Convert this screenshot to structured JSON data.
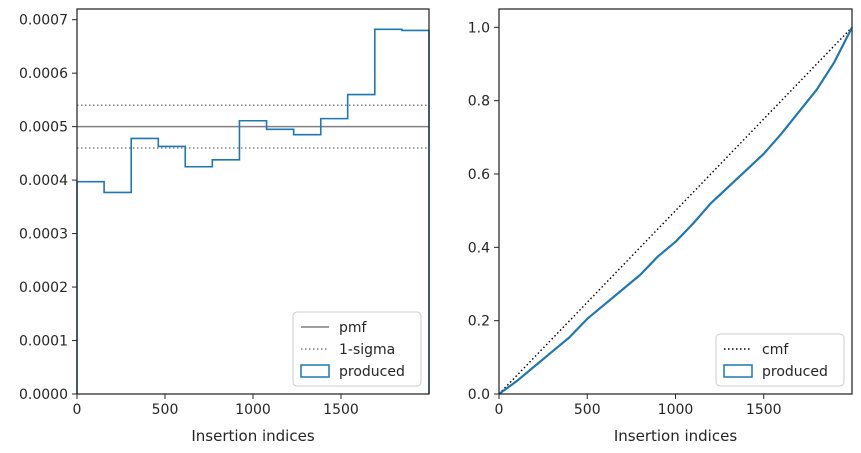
{
  "chart_data": [
    {
      "type": "histogram-step",
      "xlabel": "Insertion indices",
      "ylabel": "",
      "title": "",
      "xlim": [
        0,
        2000
      ],
      "ylim": [
        0,
        0.00072
      ],
      "xticks": [
        0,
        500,
        1000,
        1500
      ],
      "xtick_labels": [
        "0",
        "500",
        "1000",
        "1500"
      ],
      "yticks": [
        0,
        0.0001,
        0.0002,
        0.0003,
        0.0004,
        0.0005,
        0.0006,
        0.0007
      ],
      "ytick_labels": [
        "0.0000",
        "0.0001",
        "0.0002",
        "0.0003",
        "0.0004",
        "0.0005",
        "0.0006",
        "0.0007"
      ],
      "bin_edges": [
        0,
        154,
        308,
        462,
        615,
        769,
        923,
        1077,
        1231,
        1385,
        1538,
        1692,
        1846,
        2000
      ],
      "values": [
        0.000397,
        0.000377,
        0.000478,
        0.000463,
        0.000425,
        0.000438,
        0.000511,
        0.000495,
        0.000485,
        0.000515,
        0.00056,
        0.000682,
        0.00068
      ],
      "pmf": 0.0005,
      "sigma_band": [
        0.00046,
        0.00054
      ],
      "grid": false,
      "legend_position": "bottom-right",
      "legend": [
        {
          "label": "pmf",
          "style": "solid-line",
          "color": "#808080"
        },
        {
          "label": "1-sigma",
          "style": "dotted-line",
          "color": "#808080"
        },
        {
          "label": "produced",
          "style": "box",
          "color": "#1f77b4"
        }
      ]
    },
    {
      "type": "line",
      "xlabel": "Insertion indices",
      "ylabel": "",
      "title": "",
      "xlim": [
        0,
        2000
      ],
      "ylim": [
        0,
        1.05
      ],
      "xticks": [
        0,
        500,
        1000,
        1500
      ],
      "xtick_labels": [
        "0",
        "500",
        "1000",
        "1500"
      ],
      "yticks": [
        0,
        0.2,
        0.4,
        0.6,
        0.8,
        1.0
      ],
      "ytick_labels": [
        "0.0",
        "0.2",
        "0.4",
        "0.6",
        "0.8",
        "1.0"
      ],
      "cmf_x": [
        0,
        2000
      ],
      "cmf_y": [
        0,
        1
      ],
      "produced_x": [
        0,
        100,
        200,
        300,
        400,
        500,
        600,
        700,
        800,
        900,
        1000,
        1100,
        1200,
        1300,
        1400,
        1500,
        1600,
        1700,
        1800,
        1900,
        2000
      ],
      "produced_y": [
        0,
        0.035,
        0.075,
        0.115,
        0.155,
        0.205,
        0.245,
        0.285,
        0.325,
        0.375,
        0.415,
        0.465,
        0.52,
        0.565,
        0.61,
        0.655,
        0.71,
        0.77,
        0.83,
        0.905,
        1.0
      ],
      "grid": false,
      "legend_position": "bottom-right",
      "legend": [
        {
          "label": "cmf",
          "style": "dotted-line",
          "color": "#000000"
        },
        {
          "label": "produced",
          "style": "box",
          "color": "#1f77b4"
        }
      ]
    }
  ]
}
